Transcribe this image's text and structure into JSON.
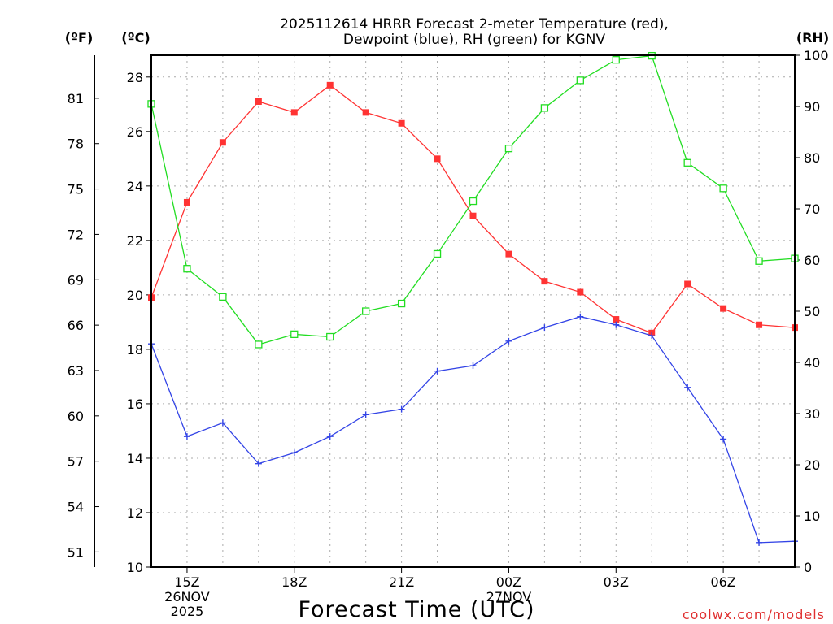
{
  "chart_data": {
    "type": "line",
    "title_line1": "2025112614 HRRR Forecast 2-meter Temperature (red),",
    "title_line2": "Dewpoint (blue), RH (green) for KGNV",
    "xlabel": "Forecast Time (UTC)",
    "watermark": "coolwx.com/models",
    "unit_f": "(ºF)",
    "unit_c": "(ºC)",
    "unit_rh": "(RH)",
    "x_hours": [
      14,
      15,
      16,
      17,
      18,
      19,
      20,
      21,
      22,
      23,
      24,
      25,
      26,
      27,
      28,
      29,
      30,
      31,
      32
    ],
    "xlim": [
      14,
      32
    ],
    "x_ticks": [
      {
        "hour": 15,
        "lines": [
          "15Z",
          "26NOV",
          "2025"
        ]
      },
      {
        "hour": 18,
        "lines": [
          "18Z"
        ]
      },
      {
        "hour": 21,
        "lines": [
          "21Z"
        ]
      },
      {
        "hour": 24,
        "lines": [
          "00Z",
          "27NOV"
        ]
      },
      {
        "hour": 27,
        "lines": [
          "03Z"
        ]
      },
      {
        "hour": 30,
        "lines": [
          "06Z"
        ]
      }
    ],
    "c_axis": {
      "range": [
        10,
        28.8
      ],
      "ticks": [
        "10",
        "12",
        "14",
        "16",
        "18",
        "20",
        "22",
        "24",
        "26",
        "28"
      ]
    },
    "f_axis": {
      "ticks": [
        "51",
        "54",
        "57",
        "60",
        "63",
        "66",
        "69",
        "72",
        "75",
        "78",
        "81"
      ]
    },
    "rh_axis": {
      "range": [
        0,
        100
      ],
      "ticks": [
        "0",
        "10",
        "20",
        "30",
        "40",
        "50",
        "60",
        "70",
        "80",
        "90",
        "100"
      ]
    },
    "colors": {
      "temp": "#ff3333",
      "dewpoint": "#3344e6",
      "rh": "#22dd22",
      "grid": "#aaaaaa",
      "axis": "#000000",
      "watermark": "#e03030"
    },
    "series": [
      {
        "name": "Temperature",
        "unit": "C",
        "marker": "filled-square",
        "values": [
          19.9,
          23.4,
          25.6,
          27.1,
          26.7,
          27.7,
          26.7,
          26.3,
          25.0,
          22.9,
          21.5,
          20.5,
          20.1,
          19.1,
          18.6,
          20.4,
          19.5,
          18.9,
          18.8
        ]
      },
      {
        "name": "Dewpoint",
        "unit": "C",
        "marker": "plus",
        "values": [
          18.2,
          14.8,
          15.3,
          13.8,
          14.2,
          14.8,
          15.6,
          15.8,
          17.2,
          17.4,
          18.3,
          18.8,
          19.2,
          18.9,
          18.5,
          16.6,
          14.7,
          10.9,
          10.95
        ]
      },
      {
        "name": "RH",
        "unit": "%",
        "marker": "open-square",
        "values": [
          90.5,
          58.3,
          52.8,
          43.5,
          45.5,
          45.0,
          50.0,
          51.5,
          61.2,
          71.5,
          81.8,
          89.7,
          95.1,
          99.1,
          99.9,
          79.0,
          74.0,
          59.8,
          60.3
        ]
      }
    ]
  }
}
